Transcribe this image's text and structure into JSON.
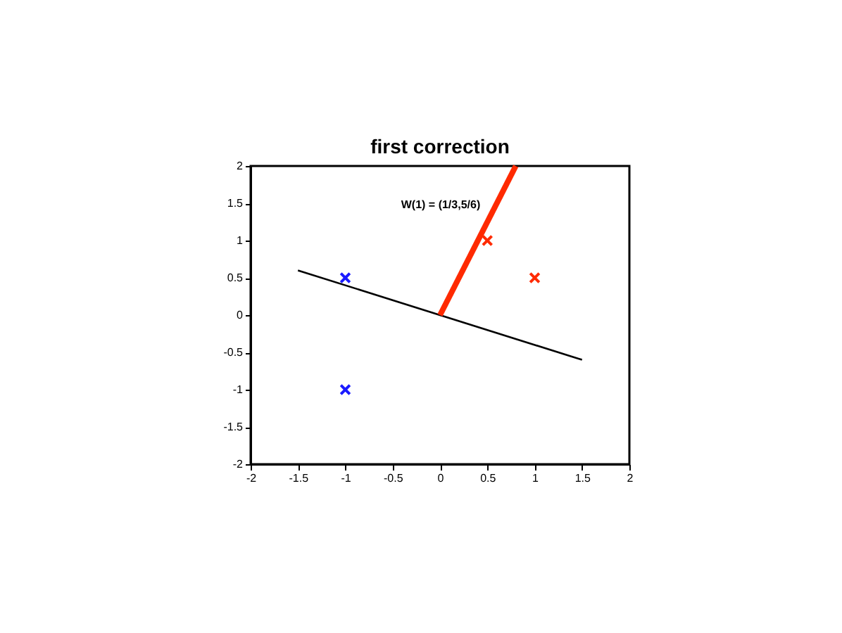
{
  "chart_data": {
    "type": "scatter",
    "title": "first correction",
    "annotations": [
      "W(1) = (1/3,5/6)"
    ],
    "xlim": [
      -2,
      2
    ],
    "ylim": [
      -2,
      2
    ],
    "xticks": [
      -2,
      -1.5,
      -1,
      -0.5,
      0,
      0.5,
      1,
      1.5,
      2
    ],
    "yticks": [
      -2,
      -1.5,
      -1,
      -0.5,
      0,
      0.5,
      1,
      1.5,
      2
    ],
    "grid": false,
    "marker": "cross",
    "series": [
      {
        "color": "#1a1aff",
        "x": [
          -1,
          -1
        ],
        "values": [
          0.5,
          -1
        ]
      },
      {
        "color": "#ff2a00",
        "x": [
          0.5,
          1
        ],
        "values": [
          1,
          0.5
        ]
      },
      {
        "type": "line",
        "color": "#000000",
        "x": [
          -1.5,
          1.5
        ],
        "values": [
          0.6,
          -0.6
        ],
        "marker": "none",
        "line_style": "solid"
      },
      {
        "type": "line",
        "color": "#ff2a00",
        "x": [
          0,
          0.8
        ],
        "values": [
          0,
          2
        ],
        "marker": "none",
        "line_style": "solid"
      }
    ]
  }
}
